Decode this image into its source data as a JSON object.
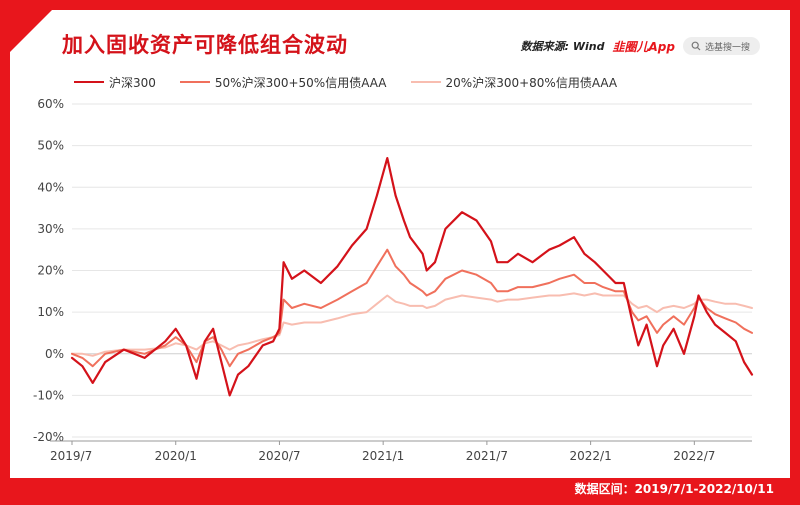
{
  "header": {
    "title": "加入固收资产可降低组合波动",
    "source": "数据来源: Wind",
    "brand": "韭圈儿App",
    "search_placeholder": "选基搜一搜"
  },
  "footer": {
    "date_range": "数据区间：2019/7/1-2022/10/11"
  },
  "colors": {
    "frame": "#e8161c",
    "series1": "#d4121a",
    "series2": "#f0705c",
    "series3": "#f8bdb0"
  },
  "chart_data": {
    "type": "line",
    "title": "加入固收资产可降低组合波动",
    "ylim": [
      -20,
      60
    ],
    "yticks": [
      -20,
      -10,
      0,
      10,
      20,
      30,
      40,
      50,
      60
    ],
    "ytick_labels": [
      "-20%",
      "-10%",
      "0%",
      "10%",
      "20%",
      "30%",
      "40%",
      "50%",
      "60%"
    ],
    "xlim": [
      2019.5,
      2022.778
    ],
    "xticks": [
      2019.5,
      2020.0,
      2020.5,
      2021.0,
      2021.5,
      2022.0,
      2022.5
    ],
    "xtick_labels": [
      "2019/7",
      "2020/1",
      "2020/7",
      "2021/1",
      "2021/7",
      "2022/1",
      "2022/7"
    ],
    "legend_position": "top-left",
    "grid": "horizontal",
    "series": [
      {
        "name": "沪深300",
        "x": [
          2019.5,
          2019.55,
          2019.6,
          2019.66,
          2019.75,
          2019.85,
          2019.95,
          2020.0,
          2020.05,
          2020.1,
          2020.14,
          2020.18,
          2020.22,
          2020.26,
          2020.3,
          2020.35,
          2020.42,
          2020.47,
          2020.5,
          2020.52,
          2020.56,
          2020.62,
          2020.7,
          2020.78,
          2020.85,
          2020.92,
          2020.97,
          2021.02,
          2021.06,
          2021.1,
          2021.13,
          2021.16,
          2021.19,
          2021.21,
          2021.25,
          2021.3,
          2021.38,
          2021.45,
          2021.52,
          2021.55,
          2021.6,
          2021.65,
          2021.72,
          2021.8,
          2021.85,
          2021.92,
          2021.97,
          2022.02,
          2022.06,
          2022.12,
          2022.16,
          2022.2,
          2022.23,
          2022.27,
          2022.32,
          2022.35,
          2022.4,
          2022.45,
          2022.5,
          2022.52,
          2022.56,
          2022.6,
          2022.65,
          2022.7,
          2022.74,
          2022.778
        ],
        "y": [
          -1,
          -3,
          -7,
          -2,
          1,
          -1,
          3,
          6,
          2,
          -6,
          3,
          6,
          -2,
          -10,
          -5,
          -3,
          2,
          3,
          6,
          22,
          18,
          20,
          17,
          21,
          26,
          30,
          38,
          47,
          38,
          32,
          28,
          26,
          24,
          20,
          22,
          30,
          34,
          32,
          27,
          22,
          22,
          24,
          22,
          25,
          26,
          28,
          24,
          22,
          20,
          17,
          17,
          8,
          2,
          7,
          -3,
          2,
          6,
          0,
          9,
          14,
          10,
          7,
          5,
          3,
          -2,
          -5
        ]
      },
      {
        "name": "50%沪深300+50%信用债AAA",
        "x": [
          2019.5,
          2019.55,
          2019.6,
          2019.66,
          2019.75,
          2019.85,
          2019.95,
          2020.0,
          2020.05,
          2020.1,
          2020.14,
          2020.18,
          2020.22,
          2020.26,
          2020.3,
          2020.35,
          2020.42,
          2020.47,
          2020.5,
          2020.52,
          2020.56,
          2020.62,
          2020.7,
          2020.78,
          2020.85,
          2020.92,
          2020.97,
          2021.02,
          2021.06,
          2021.1,
          2021.13,
          2021.16,
          2021.19,
          2021.21,
          2021.25,
          2021.3,
          2021.38,
          2021.45,
          2021.52,
          2021.55,
          2021.6,
          2021.65,
          2021.72,
          2021.8,
          2021.85,
          2021.92,
          2021.97,
          2022.02,
          2022.06,
          2022.12,
          2022.16,
          2022.2,
          2022.23,
          2022.27,
          2022.32,
          2022.35,
          2022.4,
          2022.45,
          2022.5,
          2022.52,
          2022.56,
          2022.6,
          2022.65,
          2022.7,
          2022.74,
          2022.778
        ],
        "y": [
          0,
          -1,
          -3,
          0,
          1,
          0,
          2,
          4,
          2,
          -2,
          3,
          4,
          1,
          -3,
          0,
          1,
          3,
          4,
          5,
          13,
          11,
          12,
          11,
          13,
          15,
          17,
          21,
          25,
          21,
          19,
          17,
          16,
          15,
          14,
          15,
          18,
          20,
          19,
          17,
          15,
          15,
          16,
          16,
          17,
          18,
          19,
          17,
          17,
          16,
          15,
          15,
          10,
          8,
          9,
          5,
          7,
          9,
          7,
          11,
          13.5,
          11,
          9.5,
          8.5,
          7.5,
          6,
          5
        ]
      },
      {
        "name": "20%沪深300+80%信用债AAA",
        "x": [
          2019.5,
          2019.55,
          2019.6,
          2019.66,
          2019.75,
          2019.85,
          2019.95,
          2020.0,
          2020.05,
          2020.1,
          2020.14,
          2020.18,
          2020.22,
          2020.26,
          2020.3,
          2020.35,
          2020.42,
          2020.47,
          2020.5,
          2020.52,
          2020.56,
          2020.62,
          2020.7,
          2020.78,
          2020.85,
          2020.92,
          2020.97,
          2021.02,
          2021.06,
          2021.1,
          2021.13,
          2021.16,
          2021.19,
          2021.21,
          2021.25,
          2021.3,
          2021.38,
          2021.45,
          2021.52,
          2021.55,
          2021.6,
          2021.65,
          2021.72,
          2021.8,
          2021.85,
          2021.92,
          2021.97,
          2022.02,
          2022.06,
          2022.12,
          2022.16,
          2022.2,
          2022.23,
          2022.27,
          2022.32,
          2022.35,
          2022.4,
          2022.45,
          2022.5,
          2022.52,
          2022.56,
          2022.6,
          2022.65,
          2022.7,
          2022.74,
          2022.778
        ],
        "y": [
          0,
          0,
          -0.5,
          0.5,
          1,
          1,
          1.5,
          2.5,
          2,
          1,
          2.5,
          3,
          2,
          1,
          2,
          2.5,
          3.5,
          4,
          4.5,
          7.5,
          7,
          7.5,
          7.5,
          8.5,
          9.5,
          10,
          12,
          14,
          12.5,
          12,
          11.5,
          11.5,
          11.5,
          11,
          11.5,
          13,
          14,
          13.5,
          13,
          12.5,
          13,
          13,
          13.5,
          14,
          14,
          14.5,
          14,
          14.5,
          14,
          14,
          14,
          12,
          11,
          11.5,
          10,
          11,
          11.5,
          11,
          12,
          13,
          13,
          12.5,
          12,
          12,
          11.5,
          11
        ]
      }
    ]
  }
}
